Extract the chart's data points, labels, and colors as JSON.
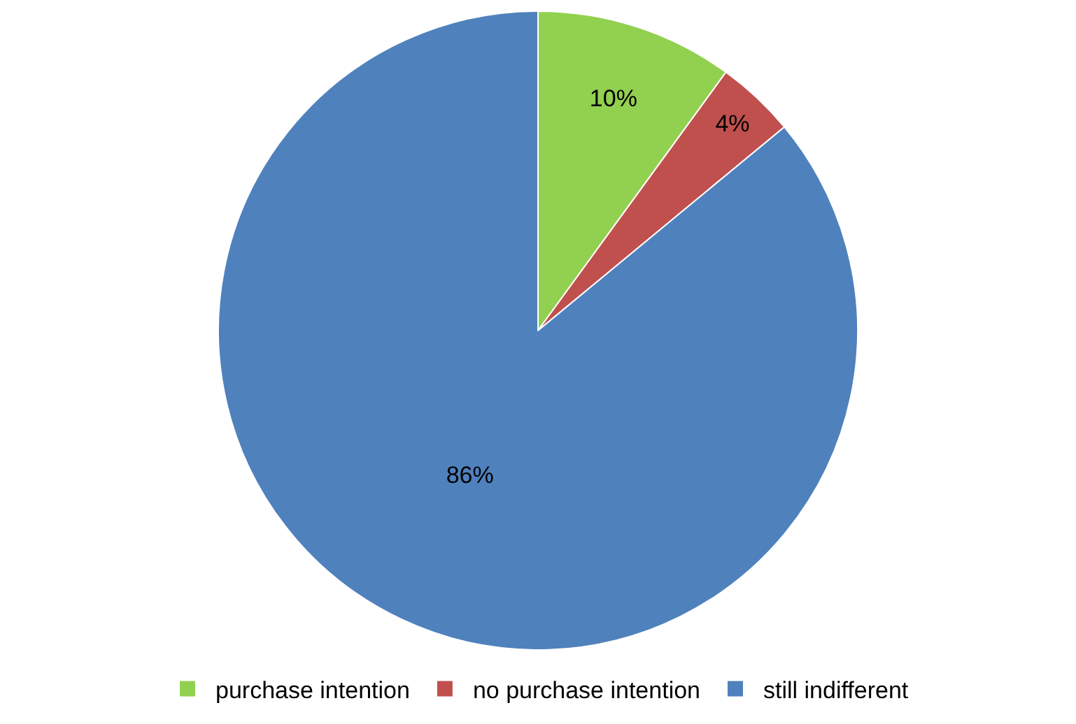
{
  "chart_data": {
    "type": "pie",
    "categories": [
      "purchase intention",
      "no purchase intention",
      "still indifferent"
    ],
    "values": [
      10,
      4,
      86
    ],
    "colors": [
      "#92d050",
      "#c0504d",
      "#4f81bd"
    ],
    "value_labels": [
      "10%",
      "4%",
      "86%"
    ],
    "legend": "bottom"
  }
}
